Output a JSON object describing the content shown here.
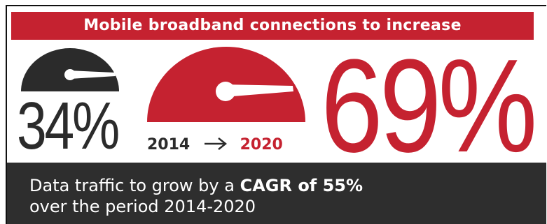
{
  "headline": "Mobile broadband connections to increase",
  "stat_2014": {
    "value": "34%",
    "year": "2014"
  },
  "stat_2020": {
    "value": "69%",
    "year": "2020"
  },
  "footer": {
    "line1_prefix": "Data traffic to grow by a ",
    "line1_bold": "CAGR of 55%",
    "line2": "over the period 2014-2020"
  },
  "colors": {
    "accent_red": "#c52230",
    "dark_gray": "#2b2b2b",
    "footer_bg": "#2e2e2e"
  },
  "icons": [
    "speedometer-icon-small",
    "speedometer-icon-large",
    "arrow-right-icon"
  ]
}
